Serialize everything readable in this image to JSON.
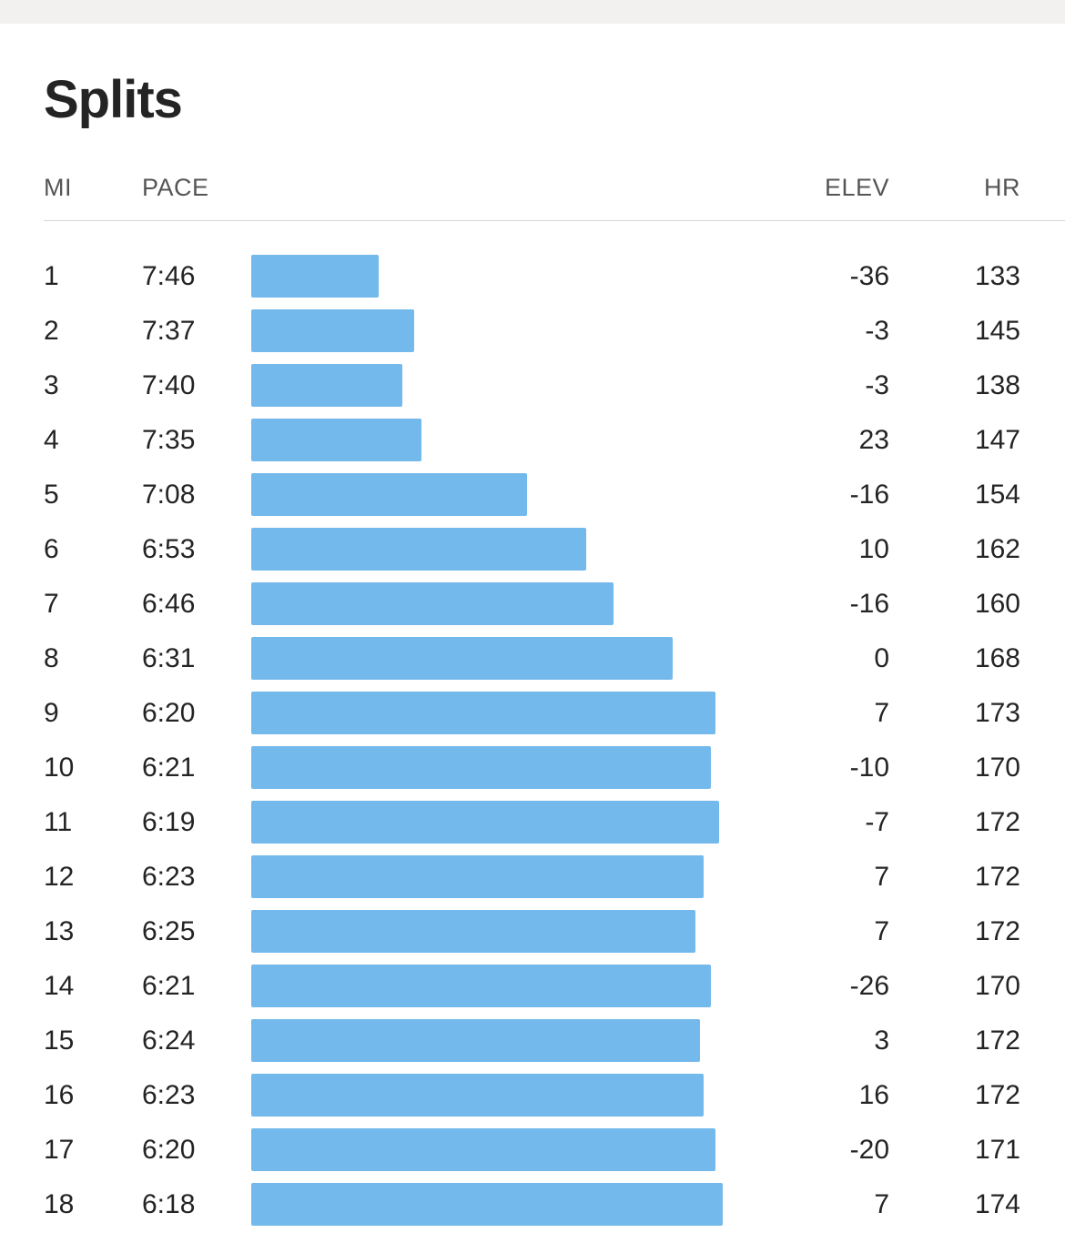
{
  "title": "Splits",
  "headers": {
    "mi": "MI",
    "pace": "PACE",
    "elev": "ELEV",
    "hr": "HR"
  },
  "colors": {
    "bar": "#74b9ec",
    "divider": "#d6d6d6"
  },
  "splits": [
    {
      "mi": "1",
      "pace": "7:46",
      "elev": "-36",
      "hr": "133",
      "pace_sec": 466
    },
    {
      "mi": "2",
      "pace": "7:37",
      "elev": "-3",
      "hr": "145",
      "pace_sec": 457
    },
    {
      "mi": "3",
      "pace": "7:40",
      "elev": "-3",
      "hr": "138",
      "pace_sec": 460
    },
    {
      "mi": "4",
      "pace": "7:35",
      "elev": "23",
      "hr": "147",
      "pace_sec": 455
    },
    {
      "mi": "5",
      "pace": "7:08",
      "elev": "-16",
      "hr": "154",
      "pace_sec": 428
    },
    {
      "mi": "6",
      "pace": "6:53",
      "elev": "10",
      "hr": "162",
      "pace_sec": 413
    },
    {
      "mi": "7",
      "pace": "6:46",
      "elev": "-16",
      "hr": "160",
      "pace_sec": 406
    },
    {
      "mi": "8",
      "pace": "6:31",
      "elev": "0",
      "hr": "168",
      "pace_sec": 391
    },
    {
      "mi": "9",
      "pace": "6:20",
      "elev": "7",
      "hr": "173",
      "pace_sec": 380
    },
    {
      "mi": "10",
      "pace": "6:21",
      "elev": "-10",
      "hr": "170",
      "pace_sec": 381
    },
    {
      "mi": "11",
      "pace": "6:19",
      "elev": "-7",
      "hr": "172",
      "pace_sec": 379
    },
    {
      "mi": "12",
      "pace": "6:23",
      "elev": "7",
      "hr": "172",
      "pace_sec": 383
    },
    {
      "mi": "13",
      "pace": "6:25",
      "elev": "7",
      "hr": "172",
      "pace_sec": 385
    },
    {
      "mi": "14",
      "pace": "6:21",
      "elev": "-26",
      "hr": "170",
      "pace_sec": 381
    },
    {
      "mi": "15",
      "pace": "6:24",
      "elev": "3",
      "hr": "172",
      "pace_sec": 384
    },
    {
      "mi": "16",
      "pace": "6:23",
      "elev": "16",
      "hr": "172",
      "pace_sec": 383
    },
    {
      "mi": "17",
      "pace": "6:20",
      "elev": "-20",
      "hr": "171",
      "pace_sec": 380
    },
    {
      "mi": "18",
      "pace": "6:18",
      "elev": "7",
      "hr": "174",
      "pace_sec": 378
    }
  ]
}
